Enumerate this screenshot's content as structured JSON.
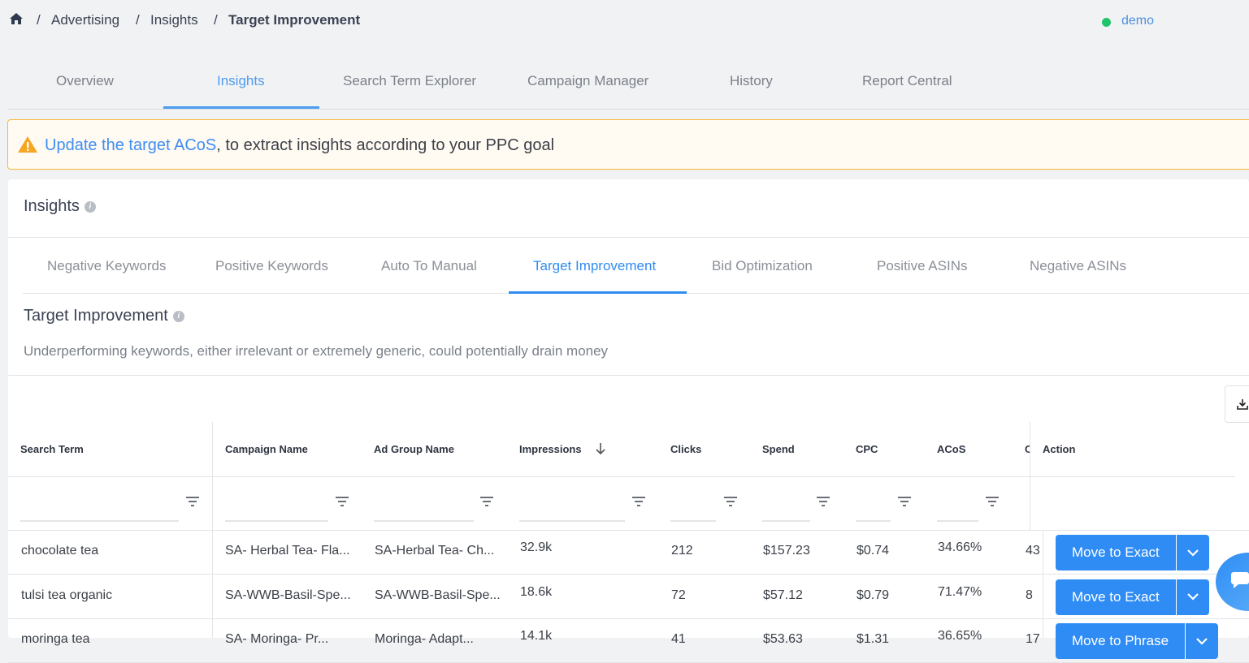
{
  "breadcrumb": {
    "items": [
      "Advertising",
      "Insights"
    ],
    "current": "Target Improvement"
  },
  "user": {
    "name": "demo",
    "status_color": "#1fc46b"
  },
  "nav_tabs": [
    "Overview",
    "Insights",
    "Search Term Explorer",
    "Campaign Manager",
    "History",
    "Report Central"
  ],
  "nav_active": "Insights",
  "alert": {
    "link": "Update the target ACoS",
    "text": ", to extract insights according to your PPC goal"
  },
  "insights": {
    "title": "Insights",
    "info_icon": "i"
  },
  "sub_tabs": [
    "Negative Keywords",
    "Positive Keywords",
    "Auto To Manual",
    "Target Improvement",
    "Bid Optimization",
    "Positive ASINs",
    "Negative ASINs"
  ],
  "sub_active": "Target Improvement",
  "section": {
    "title": "Target Improvement",
    "description": "Underperforming keywords, either irrelevant or extremely generic, could potentially drain money"
  },
  "table": {
    "columns": [
      "Search Term",
      "Campaign Name",
      "Ad Group Name",
      "Impressions",
      "Clicks",
      "Spend",
      "CPC",
      "ACoS",
      "C",
      "Action"
    ],
    "sorted_column": "Impressions",
    "sort_direction": "desc",
    "rows": [
      {
        "search_term": "chocolate tea",
        "campaign": "SA- Herbal Tea- Fla...",
        "ad_group": "SA-Herbal Tea- Ch...",
        "impressions": "32.9k",
        "clicks": "212",
        "spend": "$157.23",
        "cpc": "$0.74",
        "acos": "34.66%",
        "c": "43",
        "action": "Move to Exact"
      },
      {
        "search_term": "tulsi tea organic",
        "campaign": "SA-WWB-Basil-Spe...",
        "ad_group": "SA-WWB-Basil-Spe...",
        "impressions": "18.6k",
        "clicks": "72",
        "spend": "$57.12",
        "cpc": "$0.79",
        "acos": "71.47%",
        "c": "8",
        "action": "Move to Exact"
      },
      {
        "search_term": "moringa tea",
        "campaign": "SA- Moringa- Pr...",
        "ad_group": "Moringa- Adapt...",
        "impressions": "14.1k",
        "clicks": "41",
        "spend": "$53.63",
        "cpc": "$1.31",
        "acos": "36.65%",
        "c": "17",
        "action": "Move to Phrase"
      }
    ]
  }
}
